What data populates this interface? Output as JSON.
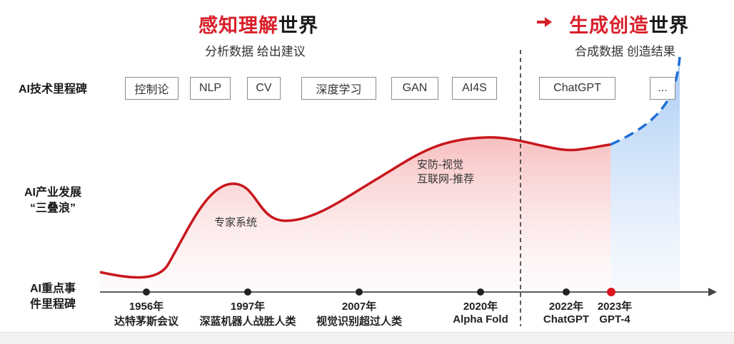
{
  "left_header": {
    "highlight": "感知理解",
    "rest": "世界",
    "subtitle": "分析数据 给出建议"
  },
  "right_header": {
    "highlight": "生成创造",
    "rest": "世界",
    "subtitle": "合成数据 创造结果"
  },
  "row_labels": {
    "tech": "AI技术里程碑",
    "industry_line1": "AI产业发展",
    "industry_line2": "“三叠浪”",
    "events_line1": "AI重点事",
    "events_line2": "件里程碑"
  },
  "tech_milestones": [
    "控制论",
    "NLP",
    "CV",
    "深度学习",
    "GAN",
    "AI4S",
    "ChatGPT",
    "..."
  ],
  "curve_labels": {
    "expert": "专家系统",
    "security_line1": "安防-视觉",
    "security_line2": "互联网-推荐"
  },
  "timeline": [
    {
      "year": "1956年",
      "event": "达特茅斯会议",
      "highlight": false
    },
    {
      "year": "1997年",
      "event": "深蓝机器人战胜人类",
      "highlight": false
    },
    {
      "year": "2007年",
      "event": "视觉识别超过人类",
      "highlight": false
    },
    {
      "year": "2020年",
      "event": "Alpha Fold",
      "highlight": false
    },
    {
      "year": "2022年",
      "event": "ChatGPT",
      "highlight": false
    },
    {
      "year": "2023年",
      "event": "GPT-4",
      "highlight": true
    }
  ],
  "colors": {
    "accent_red": "#d9202a",
    "curve_red": "#c8161d",
    "future_blue": "#1e6fd9"
  },
  "icons": {
    "transition_arrow": "arrow-right-icon"
  }
}
